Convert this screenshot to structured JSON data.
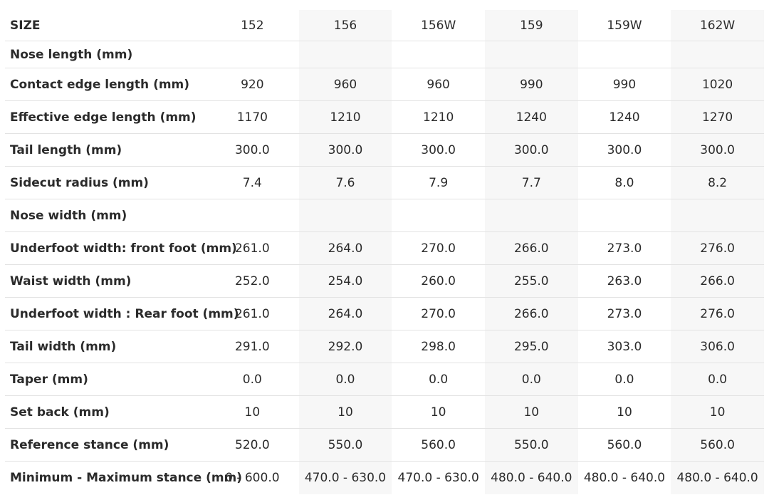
{
  "table": {
    "header": [
      "SIZE",
      "152",
      "156",
      "156W",
      "159",
      "159W",
      "162W"
    ],
    "rows": [
      {
        "label": "Nose length (mm)"
      },
      {
        "label": "Contact edge length (mm)",
        "values": [
          "920",
          "960",
          "960",
          "990",
          "990",
          "1020"
        ]
      },
      {
        "label": "Effective edge length (mm)",
        "values": [
          "1170",
          "1210",
          "1210",
          "1240",
          "1240",
          "1270"
        ]
      },
      {
        "label": "Tail length (mm)",
        "values": [
          "300.0",
          "300.0",
          "300.0",
          "300.0",
          "300.0",
          "300.0"
        ]
      },
      {
        "label": "Sidecut radius (mm)",
        "values": [
          "7.4",
          "7.6",
          "7.9",
          "7.7",
          "8.0",
          "8.2"
        ]
      },
      {
        "label": "Nose width (mm)"
      },
      {
        "label": "Underfoot width: front foot (mm)",
        "values": [
          "261.0",
          "264.0",
          "270.0",
          "266.0",
          "273.0",
          "276.0"
        ]
      },
      {
        "label": "Waist width (mm)",
        "values": [
          "252.0",
          "254.0",
          "260.0",
          "255.0",
          "263.0",
          "266.0"
        ]
      },
      {
        "label": "Underfoot width : Rear foot (mm)",
        "values": [
          "261.0",
          "264.0",
          "270.0",
          "266.0",
          "273.0",
          "276.0"
        ]
      },
      {
        "label": "Tail width (mm)",
        "values": [
          "291.0",
          "292.0",
          "298.0",
          "295.0",
          "303.0",
          "306.0"
        ]
      },
      {
        "label": "Taper (mm)",
        "values": [
          "0.0",
          "0.0",
          "0.0",
          "0.0",
          "0.0",
          "0.0"
        ]
      },
      {
        "label": "Set back (mm)",
        "values": [
          "10",
          "10",
          "10",
          "10",
          "10",
          "10"
        ]
      },
      {
        "label": "Reference stance (mm)",
        "values": [
          "520.0",
          "550.0",
          "560.0",
          "550.0",
          "560.0",
          "560.0"
        ]
      },
      {
        "label": "Minimum - Maximum stance (mm)",
        "values": [
          "0 - 600.0",
          "470.0 - 630.0",
          "470.0 - 630.0",
          "480.0 - 640.0",
          "480.0 - 640.0",
          "480.0 - 640.0"
        ]
      }
    ]
  }
}
